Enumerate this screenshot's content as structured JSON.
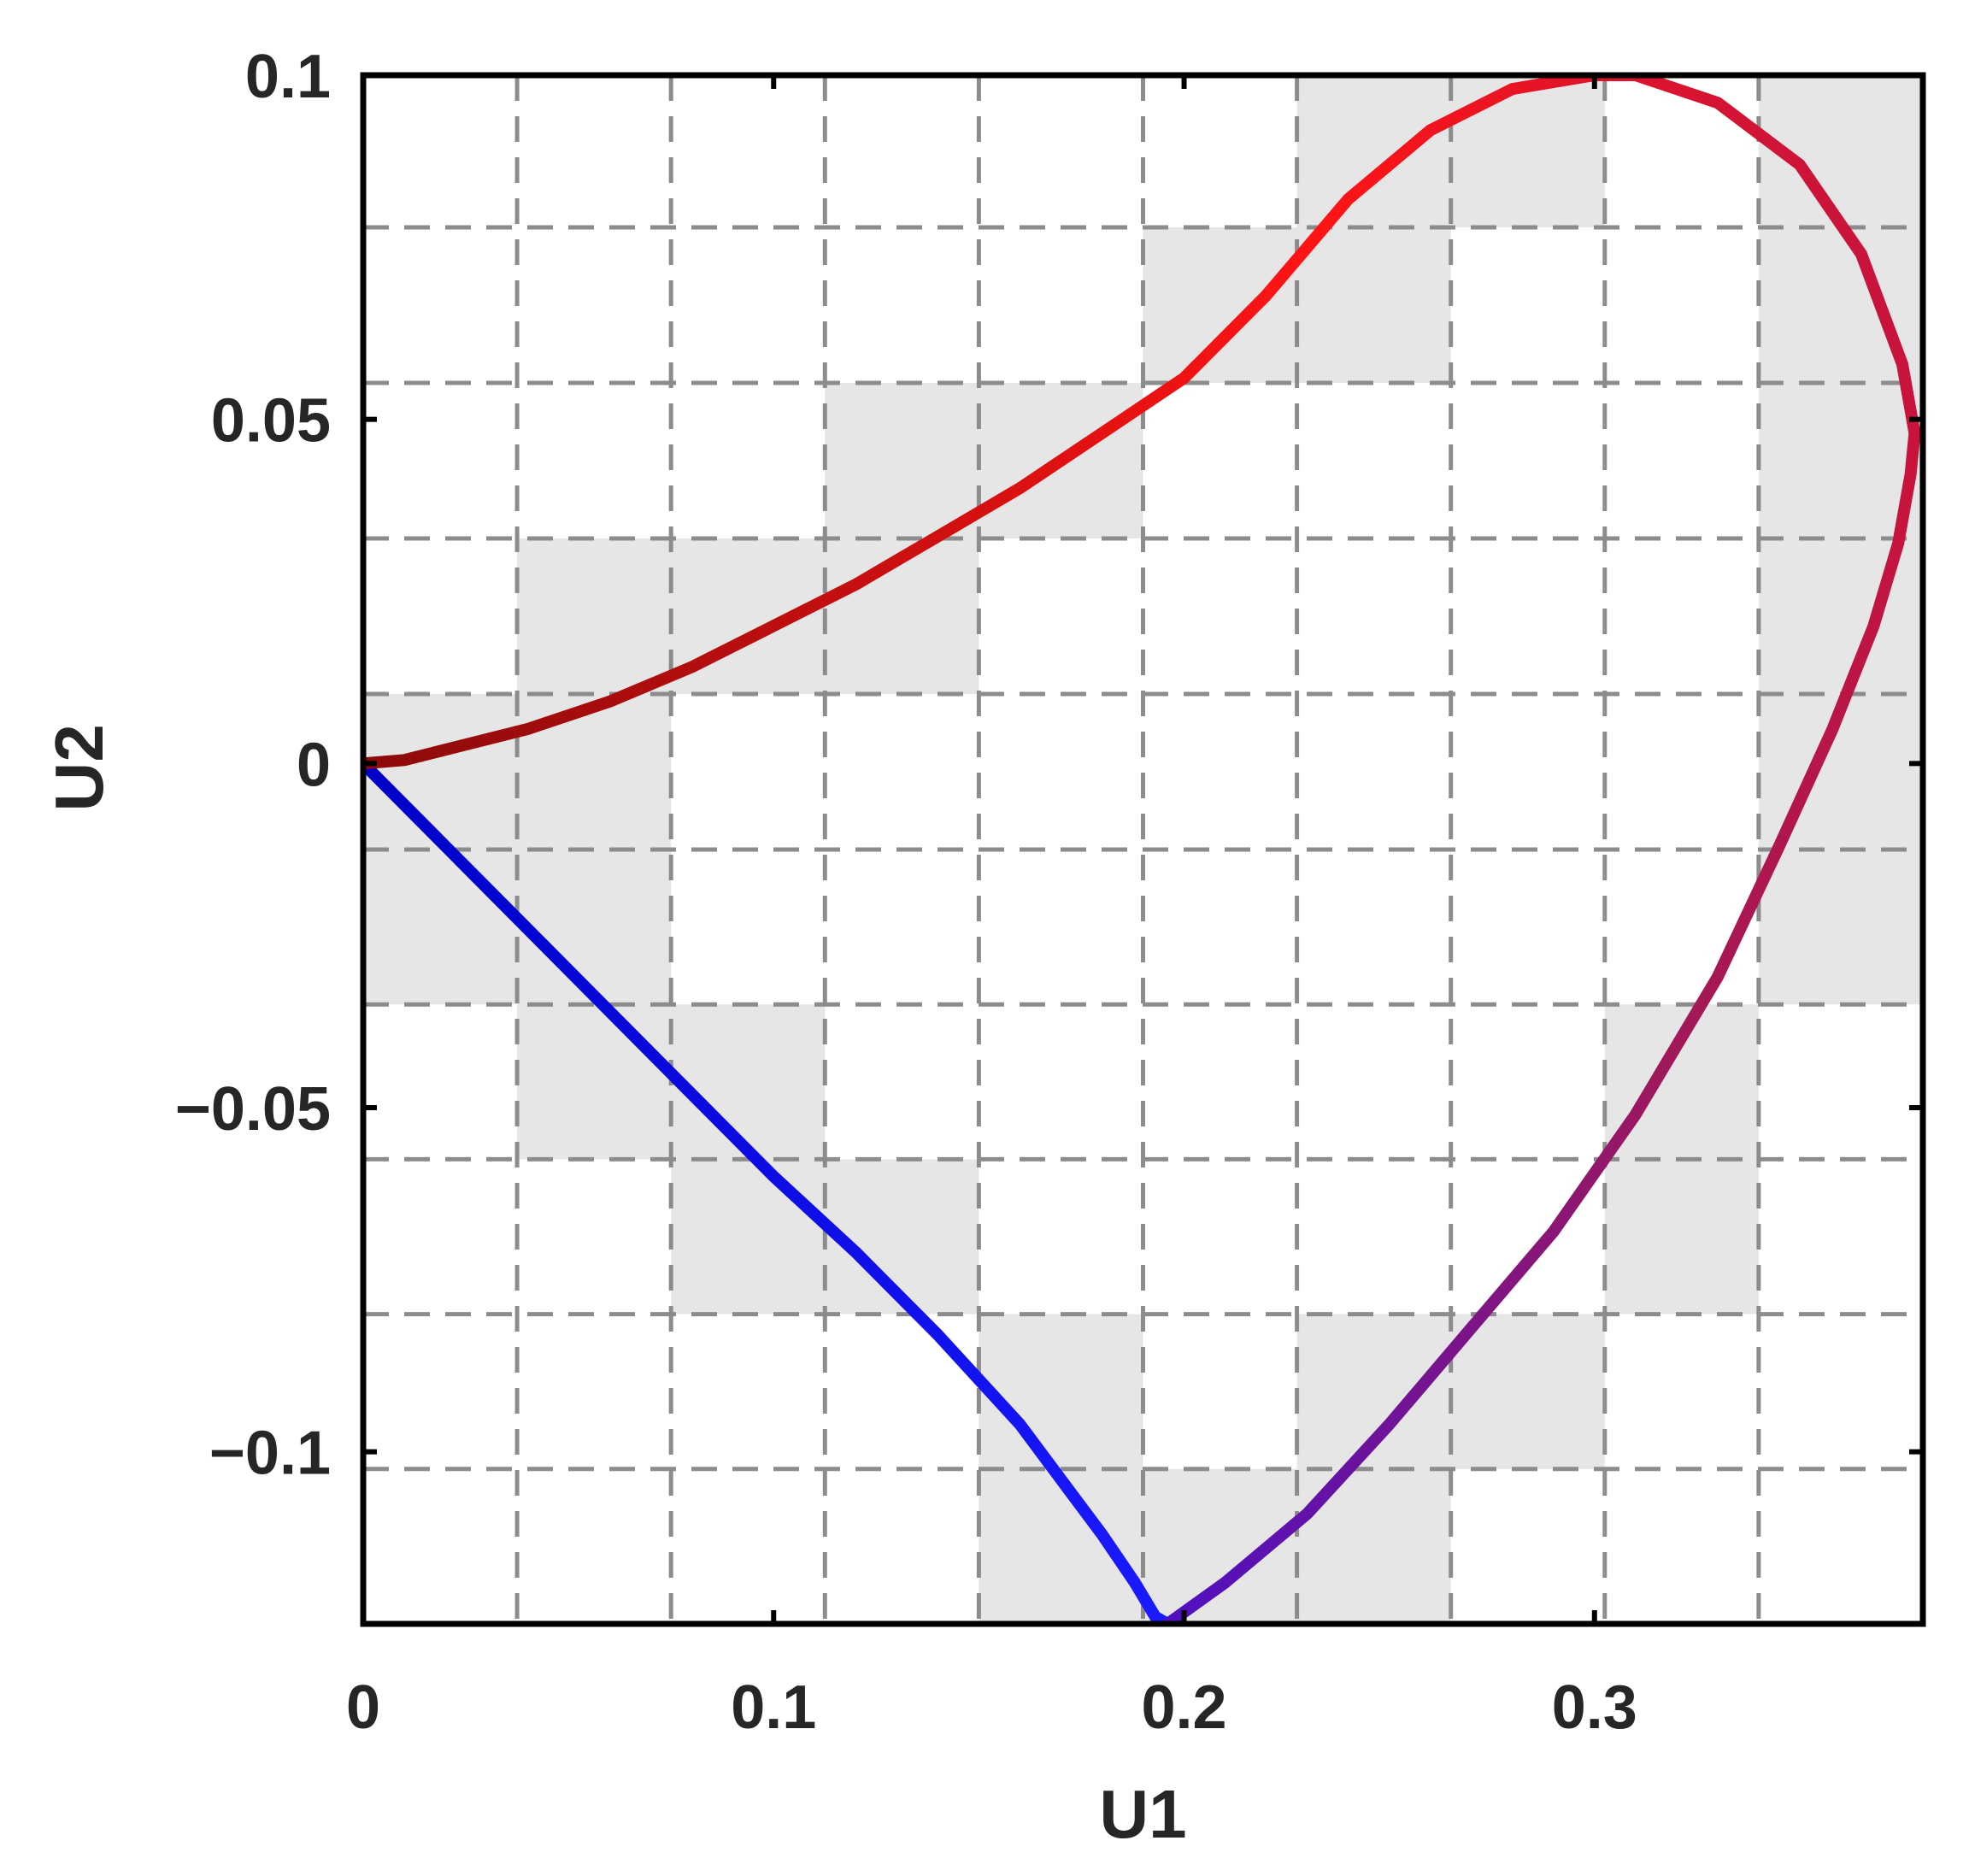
{
  "chart_data": {
    "type": "line",
    "title": "",
    "xlabel": "U1",
    "ylabel": "U2",
    "xlim": [
      0,
      0.38
    ],
    "ylim": [
      -0.125,
      0.1
    ],
    "x_ticks": [
      0,
      0.1,
      0.2,
      0.3
    ],
    "x_tick_labels": [
      "0",
      "0.1",
      "0.2",
      "0.3"
    ],
    "y_ticks": [
      -0.1,
      -0.05,
      0,
      0.05,
      0.1
    ],
    "y_tick_labels": [
      "−0.1",
      "−0.05",
      "0",
      "0.05",
      "0.1"
    ],
    "grid": true,
    "grid_style": "dashed",
    "grid_x": [
      0.0375,
      0.075,
      0.1125,
      0.15,
      0.19,
      0.2275,
      0.265,
      0.3025,
      0.34
    ],
    "grid_y": [
      -0.1025,
      -0.08,
      -0.0575,
      -0.035,
      -0.0125,
      0.0101,
      0.0327,
      0.0553,
      0.0779
    ],
    "background_cell_color": "#e6e6e6",
    "shaded_cells": [
      {
        "x": [
          0.2275,
          0.3025
        ],
        "y": [
          0.0779,
          0.1
        ]
      },
      {
        "x": [
          0.34,
          0.38
        ],
        "y": [
          0.0779,
          0.1
        ]
      },
      {
        "x": [
          0.19,
          0.265
        ],
        "y": [
          0.0553,
          0.0779
        ]
      },
      {
        "x": [
          0.1125,
          0.19
        ],
        "y": [
          0.0327,
          0.0553
        ]
      },
      {
        "x": [
          0.0375,
          0.15
        ],
        "y": [
          0.0101,
          0.0327
        ]
      },
      {
        "x": [
          0.0,
          0.075
        ],
        "y": [
          -0.035,
          0.0101
        ]
      },
      {
        "x": [
          0.34,
          0.38
        ],
        "y": [
          -0.035,
          0.0779
        ]
      },
      {
        "x": [
          0.0375,
          0.1125
        ],
        "y": [
          -0.0575,
          -0.035
        ]
      },
      {
        "x": [
          0.3025,
          0.34
        ],
        "y": [
          -0.08,
          -0.035
        ]
      },
      {
        "x": [
          0.075,
          0.15
        ],
        "y": [
          -0.08,
          -0.0575
        ]
      },
      {
        "x": [
          0.15,
          0.19
        ],
        "y": [
          -0.125,
          -0.08
        ]
      },
      {
        "x": [
          0.2275,
          0.3025
        ],
        "y": [
          -0.1025,
          -0.08
        ]
      },
      {
        "x": [
          0.19,
          0.265
        ],
        "y": [
          -0.125,
          -0.1025
        ]
      }
    ],
    "series": [
      {
        "color_start": "#0000c8",
        "color_end": "#1a1aff",
        "x": [
          0,
          0.02,
          0.04,
          0.06,
          0.08,
          0.1,
          0.12,
          0.14,
          0.16,
          0.17,
          0.18,
          0.188,
          0.193,
          0.196
        ],
        "y": [
          0,
          -0.012,
          -0.024,
          -0.036,
          -0.048,
          -0.06,
          -0.071,
          -0.083,
          -0.096,
          -0.104,
          -0.112,
          -0.119,
          -0.124,
          -0.125
        ]
      },
      {
        "color_start": "#5010c0",
        "color_mid": "#a0185a",
        "color_end": "#c8143c",
        "x": [
          0.196,
          0.21,
          0.23,
          0.25,
          0.27,
          0.29,
          0.31,
          0.33,
          0.345,
          0.358,
          0.368,
          0.374,
          0.377,
          0.378
        ],
        "y": [
          -0.125,
          -0.119,
          -0.109,
          -0.096,
          -0.082,
          -0.068,
          -0.051,
          -0.031,
          -0.012,
          0.005,
          0.02,
          0.032,
          0.042,
          0.048
        ]
      },
      {
        "color_start": "#c8143c",
        "color_mid": "#ff1414",
        "color_end": "#8c0a0a",
        "x": [
          0.378,
          0.375,
          0.365,
          0.35,
          0.33,
          0.31,
          0.3,
          0.28,
          0.26,
          0.24,
          0.22,
          0.2,
          0.18,
          0.16,
          0.14,
          0.12,
          0.1,
          0.08,
          0.06,
          0.04,
          0.02,
          0.01,
          0
        ],
        "y": [
          0.048,
          0.058,
          0.074,
          0.087,
          0.096,
          0.1,
          0.1,
          0.098,
          0.092,
          0.082,
          0.068,
          0.056,
          0.048,
          0.04,
          0.033,
          0.026,
          0.02,
          0.014,
          0.009,
          0.005,
          0.002,
          0.0005,
          0
        ]
      }
    ]
  }
}
